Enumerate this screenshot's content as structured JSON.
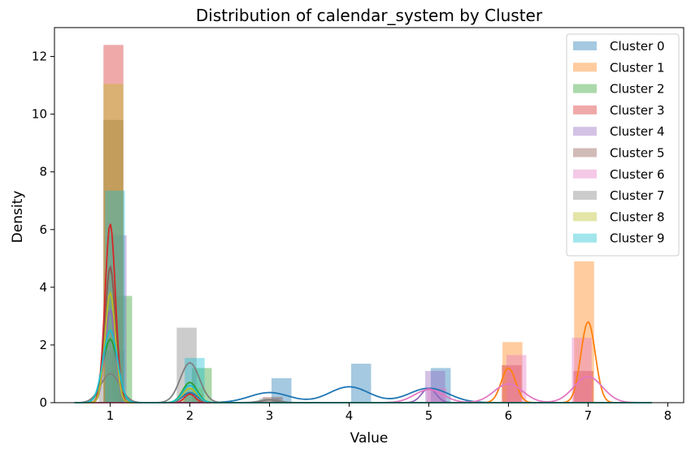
{
  "chart_data": {
    "type": "bar",
    "title": "Distribution of calendar_system by Cluster",
    "xlabel": "Value",
    "ylabel": "Density",
    "xlim": [
      0.3,
      8.2
    ],
    "ylim": [
      0,
      13
    ],
    "xticks": [
      "1",
      "2",
      "3",
      "4",
      "5",
      "6",
      "7",
      "8"
    ],
    "yticks": [
      "0",
      "2",
      "4",
      "6",
      "8",
      "10",
      "12"
    ],
    "grid": false,
    "legend_position": "top-right",
    "series": [
      {
        "name": "Cluster 0",
        "color": "#1f77b4",
        "bins": [
          [
            1.05,
            1.8
          ],
          [
            3.15,
            0.85
          ],
          [
            4.15,
            1.35
          ],
          [
            5.15,
            1.2
          ]
        ],
        "kde": [
          [
            1.0,
            2.2,
            0.09
          ],
          [
            2.0,
            0.35,
            0.09
          ],
          [
            3.0,
            0.35,
            0.25
          ],
          [
            4.0,
            0.55,
            0.25
          ],
          [
            5.0,
            0.5,
            0.25
          ]
        ]
      },
      {
        "name": "Cluster 1",
        "color": "#ff7f0e",
        "bins": [
          [
            6.05,
            2.1
          ],
          [
            6.95,
            4.9
          ]
        ],
        "kde": [
          [
            6.0,
            1.2,
            0.09
          ],
          [
            7.0,
            2.8,
            0.09
          ]
        ]
      },
      {
        "name": "Cluster 2",
        "color": "#2ca02c",
        "bins": [
          [
            1.15,
            3.7
          ],
          [
            2.15,
            1.2
          ]
        ],
        "kde": [
          [
            1.0,
            2.2,
            0.09
          ],
          [
            2.0,
            0.7,
            0.09
          ]
        ]
      },
      {
        "name": "Cluster 3",
        "color": "#d62728",
        "bins": [
          [
            1.04,
            12.4
          ],
          [
            2.04,
            0.3
          ],
          [
            6.04,
            1.3
          ],
          [
            6.94,
            1.1
          ]
        ],
        "kde": [
          [
            1.0,
            6.2,
            0.065
          ],
          [
            2.0,
            0.3,
            0.065
          ]
        ]
      },
      {
        "name": "Cluster 4",
        "color": "#9467bd",
        "bins": [
          [
            1.08,
            5.8
          ],
          [
            5.08,
            1.1
          ]
        ],
        "kde": [
          [
            1.0,
            3.2,
            0.065
          ],
          [
            5.0,
            0.5,
            0.09
          ]
        ]
      },
      {
        "name": "Cluster 5",
        "color": "#8c564b",
        "bins": [
          [
            1.04,
            9.8
          ],
          [
            3.04,
            0.2
          ]
        ],
        "kde": [
          [
            1.0,
            4.7,
            0.065
          ],
          [
            3.0,
            0.1,
            0.09
          ]
        ]
      },
      {
        "name": "Cluster 6",
        "color": "#e377c2",
        "bins": [
          [
            5.1,
            0.5
          ],
          [
            6.1,
            1.65
          ],
          [
            6.92,
            2.25
          ]
        ],
        "kde": [
          [
            5.0,
            0.45,
            0.18
          ],
          [
            6.0,
            0.65,
            0.18
          ],
          [
            7.0,
            0.9,
            0.18
          ]
        ]
      },
      {
        "name": "Cluster 7",
        "color": "#7f7f7f",
        "bins": [
          [
            0.98,
            1.0
          ],
          [
            1.96,
            2.6
          ],
          [
            3.0,
            0.15
          ]
        ],
        "kde": [
          [
            1.0,
            1.0,
            0.12
          ],
          [
            2.0,
            1.38,
            0.12
          ],
          [
            3.0,
            0.1,
            0.12
          ]
        ]
      },
      {
        "name": "Cluster 8",
        "color": "#bcbd22",
        "bins": [
          [
            1.04,
            11.05
          ],
          [
            2.04,
            0.5
          ]
        ],
        "kde": [
          [
            1.0,
            3.8,
            0.065
          ],
          [
            2.0,
            0.5,
            0.09
          ]
        ]
      },
      {
        "name": "Cluster 9",
        "color": "#17becf",
        "bins": [
          [
            1.06,
            7.35
          ],
          [
            2.06,
            1.55
          ]
        ],
        "kde": [
          [
            1.0,
            2.5,
            0.09
          ],
          [
            2.0,
            0.6,
            0.09
          ]
        ]
      }
    ]
  }
}
